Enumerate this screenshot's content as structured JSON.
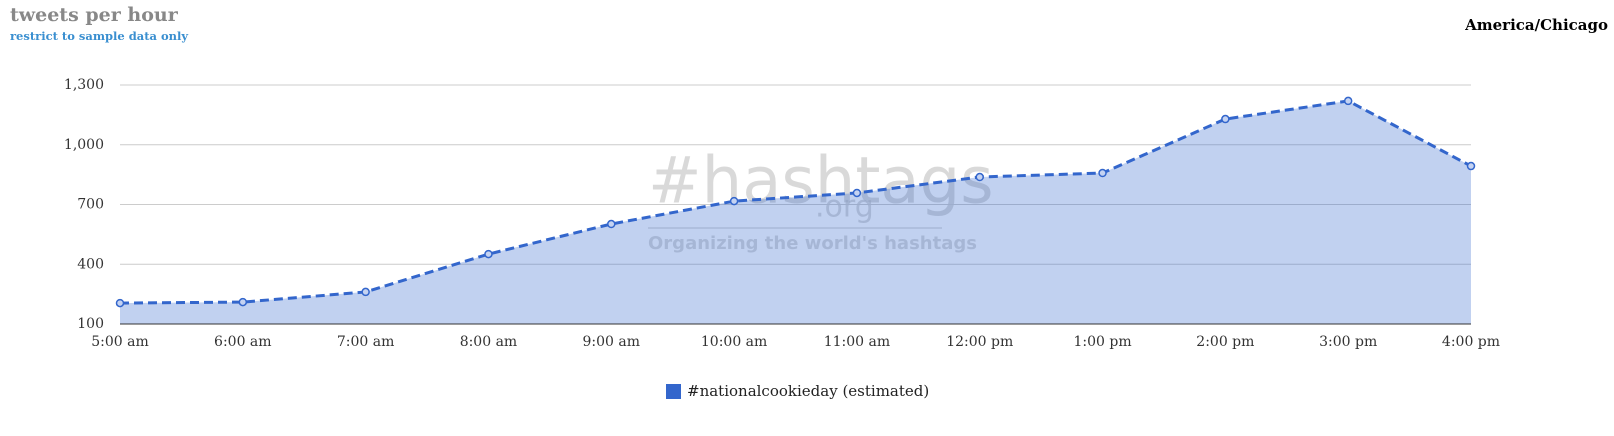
{
  "header": {
    "title": "tweets per hour",
    "link": "restrict to sample data only",
    "timezone": "America/Chicago"
  },
  "watermark": {
    "logo": "#hashtags",
    "suffix": ".org",
    "tagline": "Organizing the world's hashtags"
  },
  "chart_data": {
    "type": "area",
    "categories": [
      "5:00 am",
      "6:00 am",
      "7:00 am",
      "8:00 am",
      "9:00 am",
      "10:00 am",
      "11:00 am",
      "12:00 pm",
      "1:00 pm",
      "2:00 pm",
      "3:00 pm",
      "4:00 pm"
    ],
    "series": [
      {
        "name": "#nationalcookieday (estimated)",
        "color": "#3366cc",
        "values": [
          205,
          210,
          261,
          451,
          602,
          717,
          758,
          838,
          858,
          1129,
          1220,
          893
        ]
      }
    ],
    "ylim": [
      100,
      1300
    ],
    "yticks": [
      100,
      400,
      700,
      {
        "value": 1000,
        "label": "1,000"
      },
      {
        "value": 1300,
        "label": "1,300"
      }
    ],
    "grid": true,
    "legend": "bottom"
  }
}
